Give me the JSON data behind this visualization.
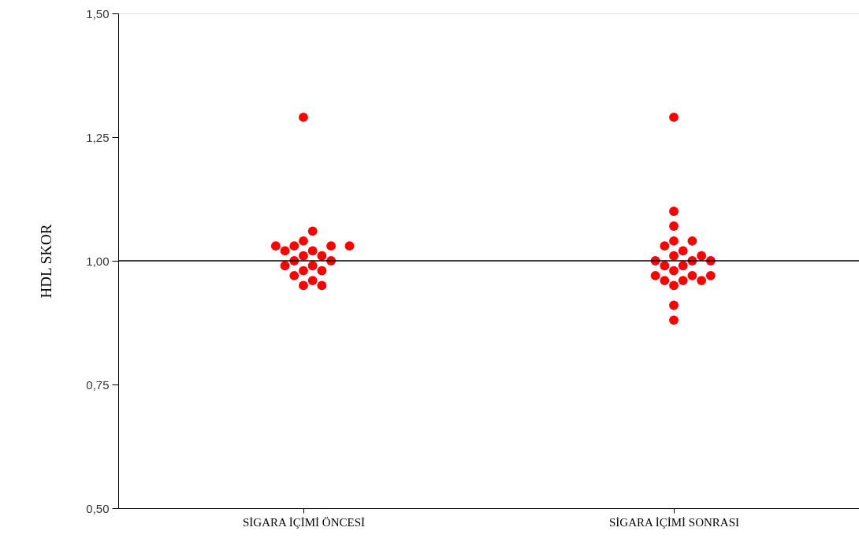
{
  "chart_data": {
    "type": "scatter",
    "ylabel": "HDL SKOR",
    "marker": "circle",
    "grid": false,
    "categories": [
      "SİGARA İÇİMİ ÖNCESİ",
      "SİGARA İÇİMİ SONRASI"
    ],
    "ylim": [
      0.5,
      1.5
    ],
    "yticks": [
      {
        "value": 0.5,
        "label": "0,50"
      },
      {
        "value": 0.75,
        "label": "0,75"
      },
      {
        "value": 1.0,
        "label": "1,00"
      },
      {
        "value": 1.25,
        "label": "1,25"
      },
      {
        "value": 1.5,
        "label": "1,50"
      }
    ],
    "ref_lines": [
      {
        "axis": "y",
        "value": 1.0,
        "color": "#000000",
        "line_style": "solid"
      }
    ],
    "series": [
      {
        "color": "#ff0000",
        "x": [
          "SİGARA İÇİMİ ÖNCESİ",
          "SİGARA İÇİMİ ÖNCESİ",
          "SİGARA İÇİMİ ÖNCESİ",
          "SİGARA İÇİMİ ÖNCESİ",
          "SİGARA İÇİMİ ÖNCESİ",
          "SİGARA İÇİMİ ÖNCESİ",
          "SİGARA İÇİMİ ÖNCESİ",
          "SİGARA İÇİMİ ÖNCESİ",
          "SİGARA İÇİMİ ÖNCESİ",
          "SİGARA İÇİMİ ÖNCESİ",
          "SİGARA İÇİMİ ÖNCESİ",
          "SİGARA İÇİMİ ÖNCESİ",
          "SİGARA İÇİMİ ÖNCESİ",
          "SİGARA İÇİMİ ÖNCESİ",
          "SİGARA İÇİMİ ÖNCESİ",
          "SİGARA İÇİMİ ÖNCESİ",
          "SİGARA İÇİMİ ÖNCESİ",
          "SİGARA İÇİMİ ÖNCESİ",
          "SİGARA İÇİMİ ÖNCESİ",
          "SİGARA İÇİMİ ÖNCESİ",
          "SİGARA İÇİMİ ÖNCESİ"
        ],
        "values": [
          1.29,
          1.02,
          1.01,
          1.0,
          0.95,
          0.97,
          1.03,
          1.02,
          0.99,
          1.0,
          1.03,
          1.03,
          1.06,
          0.98,
          0.96,
          0.95,
          1.01,
          1.03,
          1.04,
          0.99,
          0.98
        ]
      },
      {
        "color": "#ff0000",
        "x": [
          "SİGARA İÇİMİ SONRASI",
          "SİGARA İÇİMİ SONRASI",
          "SİGARA İÇİMİ SONRASI",
          "SİGARA İÇİMİ SONRASI",
          "SİGARA İÇİMİ SONRASI",
          "SİGARA İÇİMİ SONRASI",
          "SİGARA İÇİMİ SONRASI",
          "SİGARA İÇİMİ SONRASI",
          "SİGARA İÇİMİ SONRASI",
          "SİGARA İÇİMİ SONRASI",
          "SİGARA İÇİMİ SONRASI",
          "SİGARA İÇİMİ SONRASI",
          "SİGARA İÇİMİ SONRASI",
          "SİGARA İÇİMİ SONRASI",
          "SİGARA İÇİMİ SONRASI",
          "SİGARA İÇİMİ SONRASI",
          "SİGARA İÇİMİ SONRASI",
          "SİGARA İÇİMİ SONRASI",
          "SİGARA İÇİMİ SONRASI",
          "SİGARA İÇİMİ SONRASI",
          "SİGARA İÇİMİ SONRASI",
          "SİGARA İÇİMİ SONRASI",
          "SİGARA İÇİMİ SONRASI",
          "SİGARA İÇİMİ SONRASI"
        ],
        "values": [
          1.29,
          1.04,
          0.99,
          0.99,
          1.0,
          0.96,
          0.95,
          1.04,
          1.02,
          1.01,
          1.0,
          0.97,
          1.03,
          1.01,
          0.96,
          0.96,
          1.1,
          1.07,
          1.0,
          0.98,
          0.97,
          0.97,
          0.91,
          0.88
        ]
      }
    ]
  }
}
